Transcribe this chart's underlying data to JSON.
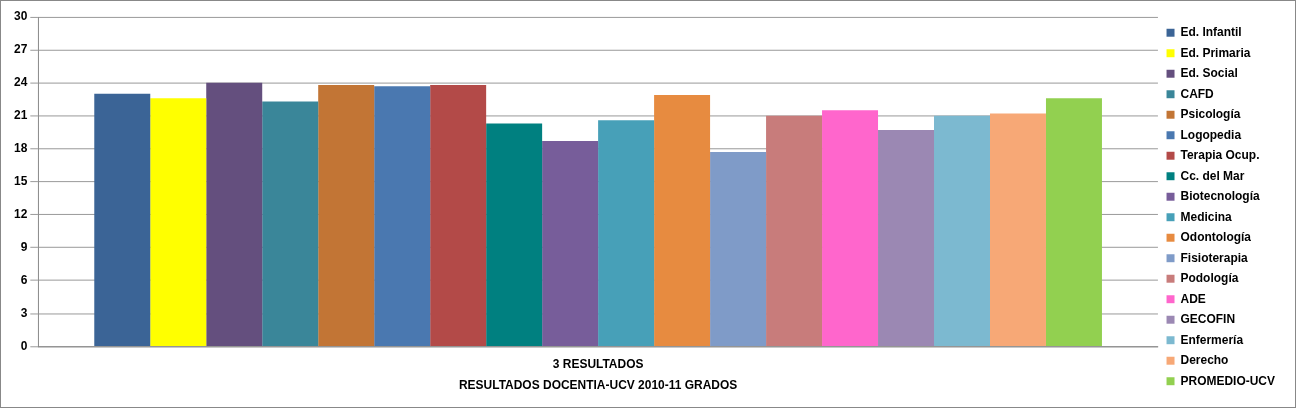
{
  "chart_data": {
    "type": "bar",
    "categories": [
      "3 RESULTADOS"
    ],
    "xlabel": "RESULTADOS DOCENTIA-UCV 2010-11 GRADOS",
    "ylim": [
      0,
      30
    ],
    "yticks": [
      0,
      3,
      6,
      9,
      12,
      15,
      18,
      21,
      24,
      27,
      30
    ],
    "grid": "y",
    "legend": "right",
    "series": [
      {
        "name": "Ed. Infantil",
        "color": "#3b6496",
        "values": [
          23.0
        ]
      },
      {
        "name": "Ed. Primaria",
        "color": "#ffff00",
        "values": [
          22.6
        ]
      },
      {
        "name": "Ed. Social",
        "color": "#644f7e",
        "values": [
          24.0
        ]
      },
      {
        "name": "CAFD",
        "color": "#3a8699",
        "values": [
          22.3
        ]
      },
      {
        "name": "Psicología",
        "color": "#c27535",
        "values": [
          23.8
        ]
      },
      {
        "name": "Logopedia",
        "color": "#4a78b0",
        "values": [
          23.7
        ]
      },
      {
        "name": "Terapia Ocup.",
        "color": "#b34a48",
        "values": [
          23.8
        ]
      },
      {
        "name": "Cc. del Mar",
        "color": "#008080",
        "values": [
          20.3
        ]
      },
      {
        "name": "Biotecnología",
        "color": "#775d9a",
        "values": [
          18.7
        ]
      },
      {
        "name": "Medicina",
        "color": "#47a0b8",
        "values": [
          20.6
        ]
      },
      {
        "name": "Odontología",
        "color": "#e78b40",
        "values": [
          22.9
        ]
      },
      {
        "name": "Fisioterapia",
        "color": "#7f9bc8",
        "values": [
          17.7
        ]
      },
      {
        "name": "Podología",
        "color": "#c87c7b",
        "values": [
          21.0
        ]
      },
      {
        "name": "ADE",
        "color": "#ff66cc",
        "values": [
          21.5
        ]
      },
      {
        "name": "GECOFIN",
        "color": "#9b88b3",
        "values": [
          19.7
        ]
      },
      {
        "name": "Enfermería",
        "color": "#7cb9d0",
        "values": [
          21.0
        ]
      },
      {
        "name": "Derecho",
        "color": "#f7a876",
        "values": [
          21.2
        ]
      },
      {
        "name": "PROMEDIO-UCV",
        "color": "#92d050",
        "values": [
          22.6
        ]
      }
    ]
  }
}
